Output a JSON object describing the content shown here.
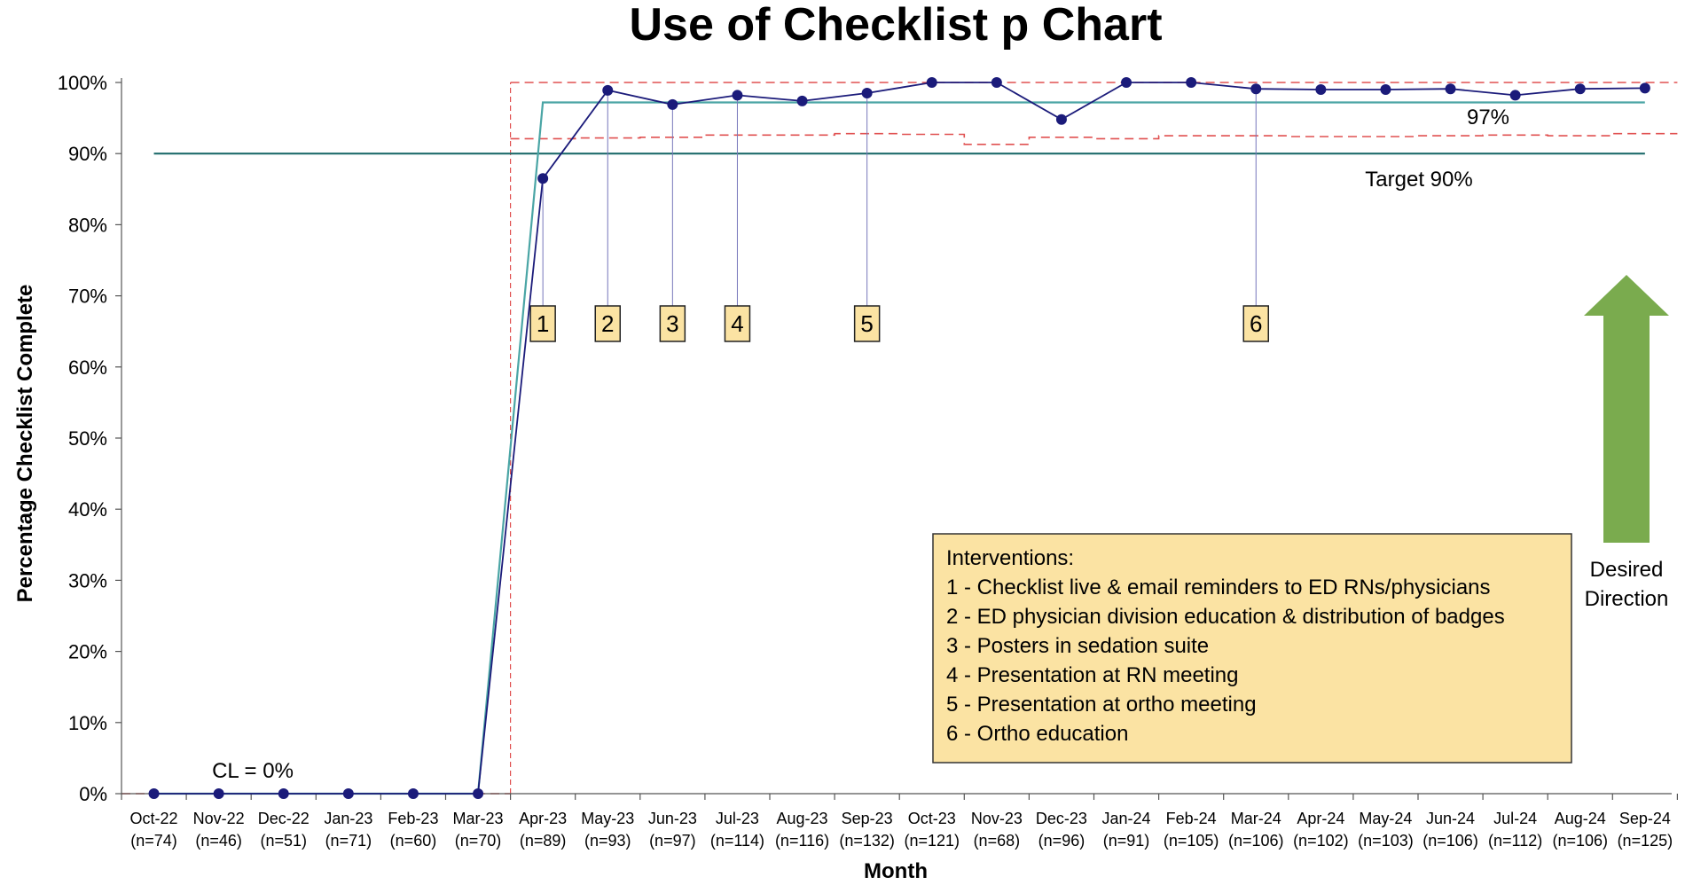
{
  "chart_data": {
    "type": "line",
    "title": "Use of Checklist p Chart",
    "xlabel": "Month",
    "ylabel": "Percentage Checklist Complete",
    "ylim": [
      0,
      100
    ],
    "y_ticks": [
      "0%",
      "10%",
      "20%",
      "30%",
      "40%",
      "50%",
      "60%",
      "70%",
      "80%",
      "90%",
      "100%"
    ],
    "categories": [
      "Oct-22",
      "Nov-22",
      "Dec-22",
      "Jan-23",
      "Feb-23",
      "Mar-23",
      "Apr-23",
      "May-23",
      "Jun-23",
      "Jul-23",
      "Aug-23",
      "Sep-23",
      "Oct-23",
      "Nov-23",
      "Dec-23",
      "Jan-24",
      "Feb-24",
      "Mar-24",
      "Apr-24",
      "May-24",
      "Jun-24",
      "Jul-24",
      "Aug-24",
      "Sep-24"
    ],
    "n_labels": [
      "(n=74)",
      "(n=46)",
      "(n=51)",
      "(n=71)",
      "(n=60)",
      "(n=70)",
      "(n=89)",
      "(n=93)",
      "(n=97)",
      "(n=114)",
      "(n=116)",
      "(n=132)",
      "(n=121)",
      "(n=68)",
      "(n=96)",
      "(n=91)",
      "(n=105)",
      "(n=106)",
      "(n=102)",
      "(n=103)",
      "(n=106)",
      "(n=112)",
      "(n=106)",
      "(n=125)"
    ],
    "series": [
      {
        "values": [
          0,
          0,
          0,
          0,
          0,
          0,
          86.5,
          98.9,
          96.9,
          98.2,
          97.4,
          98.5,
          100,
          100,
          94.8,
          100,
          100,
          99.1,
          99,
          99,
          99.1,
          98.2,
          99.1,
          99.2
        ],
        "color": "#1b1b7a"
      }
    ],
    "center_line": {
      "segments": [
        {
          "from": 0,
          "to": 5,
          "value": 0
        },
        {
          "from": 6,
          "to": 23,
          "value": 97.2
        }
      ],
      "color": "#4aa5a5"
    },
    "control_limits": {
      "ucl": [
        0,
        0,
        0,
        0,
        0,
        0,
        100,
        100,
        100,
        100,
        100,
        100,
        100,
        100,
        100,
        100,
        100,
        100,
        100,
        100,
        100,
        100,
        100,
        100
      ],
      "lcl": [
        0,
        0,
        0,
        0,
        0,
        0,
        92.1,
        92.2,
        92.3,
        92.6,
        92.6,
        92.8,
        92.7,
        91.3,
        92.3,
        92.1,
        92.5,
        92.5,
        92.4,
        92.4,
        92.5,
        92.6,
        92.5,
        92.8
      ],
      "color": "#e05050"
    },
    "target": {
      "value": 90,
      "label": "Target 90%",
      "color": "#1f6b6b"
    },
    "cl_annotation": "CL = 0%",
    "mean_annotation": "97%",
    "interventions": [
      {
        "label": "1",
        "index": 6
      },
      {
        "label": "2",
        "index": 7
      },
      {
        "label": "3",
        "index": 8
      },
      {
        "label": "4",
        "index": 9
      },
      {
        "label": "5",
        "index": 11
      },
      {
        "label": "6",
        "index": 17
      }
    ],
    "legend": {
      "title": "Interventions:",
      "items": [
        "1 - Checklist live & email reminders to ED RNs/physicians",
        "2 - ED physician division education & distribution of badges",
        "3 - Posters in sedation suite",
        "4 - Presentation at RN meeting",
        "5 - Presentation at ortho meeting",
        "6 - Ortho education"
      ],
      "placement": "bottom-right"
    },
    "desired_direction": {
      "label_line1": "Desired",
      "label_line2": "Direction",
      "color": "#7aab4e"
    },
    "grid": false
  }
}
